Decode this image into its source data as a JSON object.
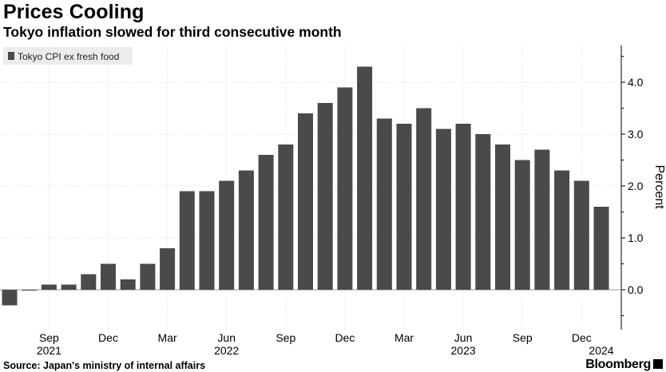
{
  "header": {
    "title": "Prices Cooling",
    "subtitle": "Tokyo inflation slowed for third consecutive month"
  },
  "footer": {
    "source": "Source: Japan's ministry of internal affairs",
    "brand": "Bloomberg"
  },
  "colors": {
    "bar": "#4a4a4a",
    "grid": "#dddddd",
    "legend_bg": "#ececec",
    "text": "#000000"
  },
  "chart_data": {
    "type": "bar",
    "legend_position": "top-left",
    "grid": true,
    "series": [
      {
        "name": "Tokyo CPI ex fresh food",
        "values": [
          -0.3,
          0.0,
          0.1,
          0.1,
          0.3,
          0.5,
          0.2,
          0.5,
          0.8,
          1.9,
          1.9,
          2.1,
          2.3,
          2.6,
          2.8,
          3.4,
          3.6,
          3.9,
          4.3,
          3.3,
          3.2,
          3.5,
          3.1,
          3.2,
          3.0,
          2.8,
          2.5,
          2.7,
          2.3,
          2.1,
          1.6
        ]
      }
    ],
    "ylabel": "Percent",
    "ylim": [
      -0.7,
      4.7
    ],
    "yticks": [
      "0.0",
      "1.0",
      "2.0",
      "3.0",
      "4.0"
    ],
    "xticks": [
      {
        "index": 2,
        "label": "Sep",
        "year": "2021"
      },
      {
        "index": 5,
        "label": "Dec",
        "year": ""
      },
      {
        "index": 8,
        "label": "Mar",
        "year": ""
      },
      {
        "index": 11,
        "label": "Jun",
        "year": "2022"
      },
      {
        "index": 14,
        "label": "Sep",
        "year": ""
      },
      {
        "index": 17,
        "label": "Dec",
        "year": ""
      },
      {
        "index": 20,
        "label": "Mar",
        "year": ""
      },
      {
        "index": 23,
        "label": "Jun",
        "year": "2023"
      },
      {
        "index": 26,
        "label": "Sep",
        "year": ""
      },
      {
        "index": 29,
        "label": "Dec",
        "year": ""
      },
      {
        "index": 30,
        "label": "",
        "year": "2024"
      }
    ]
  }
}
